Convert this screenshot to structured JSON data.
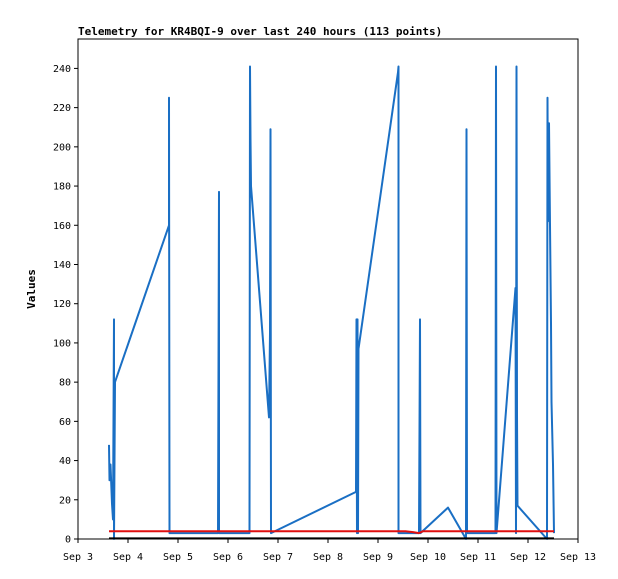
{
  "chart_data": {
    "type": "line",
    "title": "Telemetry for KR4BQI-9 over last 240 hours (113 points)",
    "ylabel": "Values",
    "xlabel": "",
    "ylim": [
      0,
      255
    ],
    "xlim": [
      0,
      10
    ],
    "yticks": [
      0,
      20,
      40,
      60,
      80,
      100,
      120,
      140,
      160,
      180,
      200,
      220,
      240
    ],
    "xticks": [
      {
        "x": 0,
        "label": "Sep 3"
      },
      {
        "x": 1,
        "label": "Sep 4"
      },
      {
        "x": 2,
        "label": "Sep 5"
      },
      {
        "x": 3,
        "label": "Sep 6"
      },
      {
        "x": 4,
        "label": "Sep 7"
      },
      {
        "x": 5,
        "label": "Sep 8"
      },
      {
        "x": 6,
        "label": "Sep 9"
      },
      {
        "x": 7,
        "label": "Sep 10"
      },
      {
        "x": 8,
        "label": "Sep 11"
      },
      {
        "x": 9,
        "label": "Sep 12"
      },
      {
        "x": 10,
        "label": "Sep 13"
      }
    ],
    "grid": false,
    "colors": {
      "blue": "#1a6fc4",
      "red": "#e01010",
      "black": "#000000"
    },
    "series": [
      {
        "color": "#1a6fc4",
        "x": [
          0.62,
          0.63,
          0.65,
          0.68,
          0.7,
          0.72,
          0.72,
          0.74,
          1.82,
          1.82,
          1.83,
          1.83,
          2.8,
          2.81,
          2.82,
          2.82,
          3.43,
          3.44,
          3.45,
          3.46,
          3.82,
          3.84,
          3.85,
          3.86,
          5.56,
          5.57,
          5.58,
          5.59,
          5.6,
          5.61,
          6.4,
          6.41,
          6.41,
          6.42,
          6.82,
          6.83,
          6.84,
          6.85,
          7.4,
          7.76,
          7.77,
          7.78,
          8.35,
          8.36,
          8.37,
          8.75,
          8.76,
          8.77,
          8.78,
          8.79,
          9.38,
          9.39,
          9.4,
          9.42,
          9.44,
          9.46,
          9.47,
          9.5,
          9.52,
          9.52
        ],
        "y": [
          48,
          30,
          38,
          18,
          10,
          112,
          0,
          80,
          160,
          225,
          3,
          3,
          3,
          88,
          177,
          3,
          3,
          241,
          204,
          180,
          62,
          105,
          209,
          3,
          24,
          112,
          3,
          112,
          3,
          97,
          238,
          241,
          3,
          3,
          3,
          56,
          112,
          3,
          16,
          0,
          209,
          3,
          3,
          241,
          3,
          128,
          3,
          241,
          63,
          17,
          0,
          225,
          162,
          212,
          160,
          110,
          70,
          38,
          3,
          3
        ]
      },
      {
        "color": "#e01010",
        "x": [
          0.62,
          6.55,
          6.7,
          6.82,
          6.9,
          7.1,
          9.52
        ],
        "y": [
          4,
          4,
          3.5,
          3,
          4,
          4,
          4
        ]
      },
      {
        "color": "#000000",
        "x": [
          0.62,
          9.52
        ],
        "y": [
          0.3,
          0.3
        ]
      }
    ]
  }
}
